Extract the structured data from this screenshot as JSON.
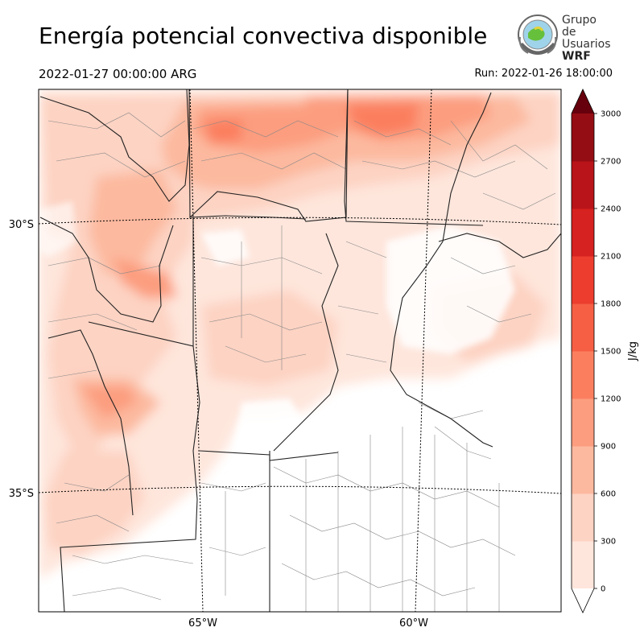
{
  "title": "Energía potencial convectiva disponible",
  "valid_time": "2022-01-27 00:00:00 ARG",
  "run_time": "Run: 2022-01-26 18:00:00",
  "logo": {
    "line1": "Grupo de",
    "line2": "Usuarios",
    "line3": "WRF"
  },
  "map": {
    "lat_labels": [
      "30°S",
      "35°S"
    ],
    "lon_labels": [
      "65°W",
      "60°W"
    ]
  },
  "colorbar": {
    "unit_label": "J/kg",
    "ticks": [
      "0",
      "300",
      "600",
      "900",
      "1200",
      "1500",
      "1800",
      "2100",
      "2400",
      "2700",
      "3000"
    ],
    "colors": [
      "#fee6dc",
      "#fdd3c3",
      "#fcb99f",
      "#fc9d7f",
      "#fb7f5f",
      "#f65f44",
      "#ec3d2e",
      "#d62220",
      "#b91419",
      "#950d14",
      "#730811"
    ],
    "extend_max_color": "#67000d"
  }
}
